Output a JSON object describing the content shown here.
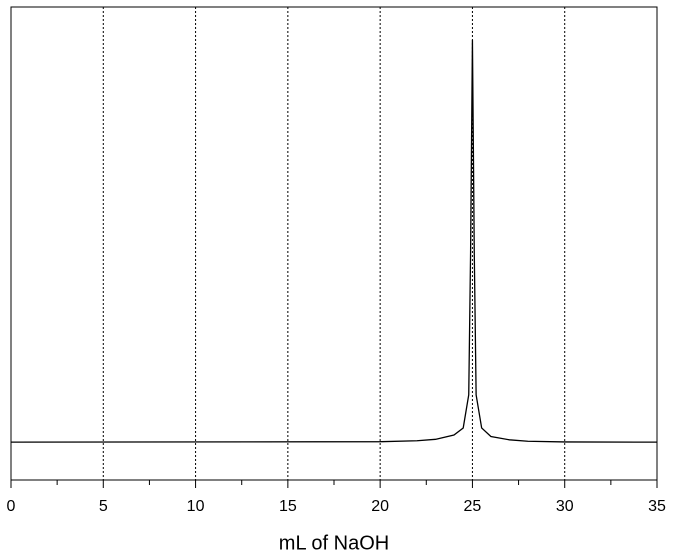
{
  "chart_data": {
    "type": "line",
    "xlabel": "mL of NaOH",
    "x": [
      0,
      20,
      22,
      23,
      24,
      24.5,
      24.8,
      24.9,
      25,
      25.1,
      25.2,
      25.5,
      26,
      27,
      28,
      30,
      35
    ],
    "series": [
      {
        "color": "#000000",
        "values": [
          0,
          0.1,
          0.3,
          0.6,
          1.5,
          3,
          10,
          40,
          85,
          40,
          10,
          3,
          1.2,
          0.5,
          0.2,
          0.05,
          0
        ]
      }
    ],
    "xlim": [
      0,
      35
    ],
    "xticks": [
      0,
      5,
      10,
      15,
      20,
      25,
      30,
      35
    ],
    "xminorticks": [
      2.5,
      7.5,
      12.5,
      17.5,
      22.5,
      27.5,
      32.5
    ],
    "ylim": [
      -8,
      92
    ],
    "grid": true
  }
}
